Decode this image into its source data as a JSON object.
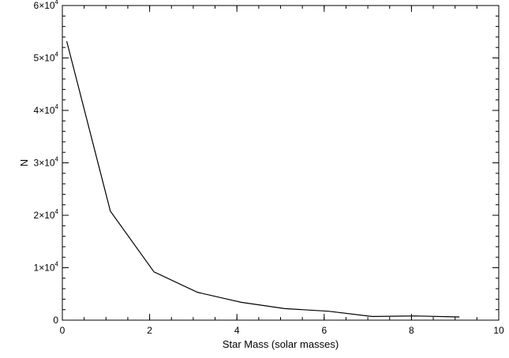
{
  "chart_data": {
    "type": "line",
    "title": "",
    "xlabel": "Star Mass (solar masses)",
    "ylabel": "N",
    "xlim": [
      0,
      10
    ],
    "ylim": [
      0,
      60000
    ],
    "grid": false,
    "x_ticks": [
      {
        "value": 0,
        "label": "0"
      },
      {
        "value": 2,
        "label": "2"
      },
      {
        "value": 4,
        "label": "4"
      },
      {
        "value": 6,
        "label": "6"
      },
      {
        "value": 8,
        "label": "8"
      },
      {
        "value": 10,
        "label": "10"
      }
    ],
    "y_ticks": [
      {
        "value": 0,
        "base": "0",
        "exp": ""
      },
      {
        "value": 10000,
        "base": "1×10",
        "exp": "4"
      },
      {
        "value": 20000,
        "base": "2×10",
        "exp": "4"
      },
      {
        "value": 30000,
        "base": "3×10",
        "exp": "4"
      },
      {
        "value": 40000,
        "base": "4×10",
        "exp": "4"
      },
      {
        "value": 50000,
        "base": "5×10",
        "exp": "4"
      },
      {
        "value": 60000,
        "base": "6×10",
        "exp": "4"
      }
    ],
    "x_minor_step": 0.5,
    "y_minor_step": 2000,
    "series": [
      {
        "x": [
          0.1,
          1.1,
          2.1,
          3.1,
          4.1,
          5.1,
          6.1,
          7.1,
          8.1,
          9.1
        ],
        "values": [
          53200,
          20800,
          9200,
          5300,
          3400,
          2200,
          1700,
          700,
          800,
          600
        ]
      }
    ]
  }
}
